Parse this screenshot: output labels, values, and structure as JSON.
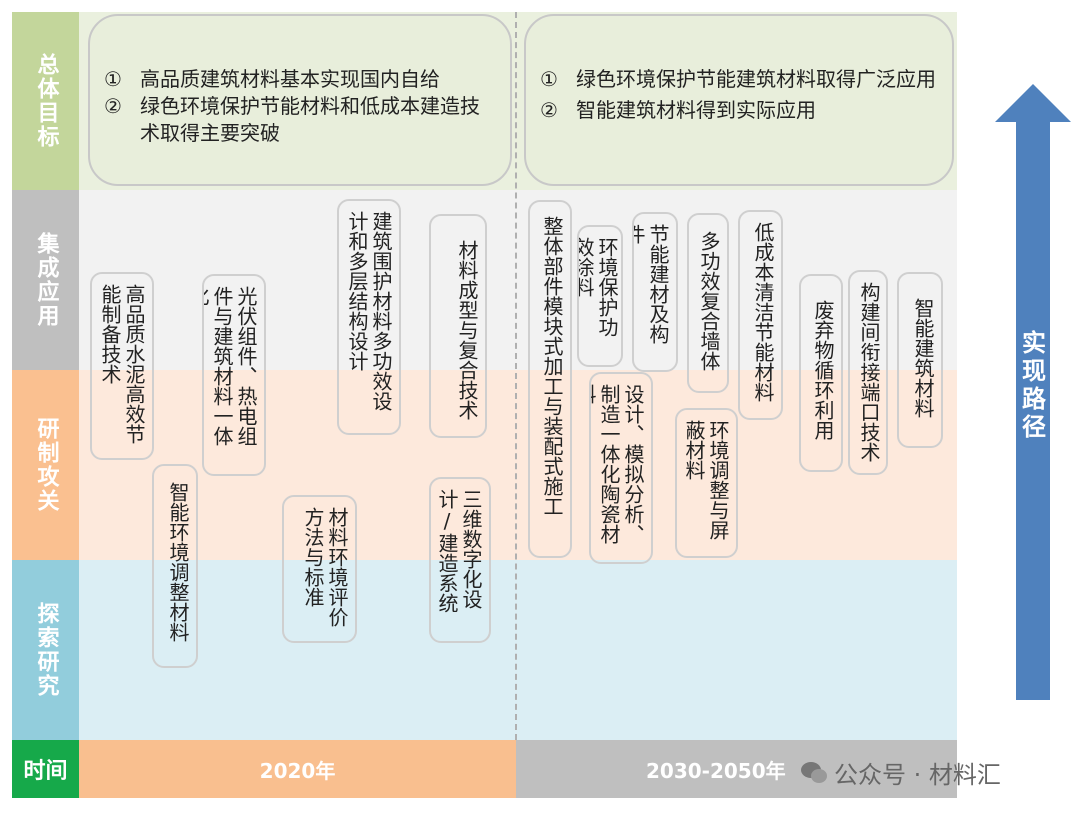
{
  "rows": [
    {
      "label": "总体目标",
      "label_color": "#c3d69b",
      "bg_color": "#eaf0de"
    },
    {
      "label": "集成应用",
      "label_color": "#bfbfbf",
      "bg_color": "#f2f2f2"
    },
    {
      "label": "研制攻关",
      "label_color": "#fac090",
      "bg_color": "#fde9dc"
    },
    {
      "label": "探索研究",
      "label_color": "#92cddc",
      "bg_color": "#dbeef4"
    },
    {
      "label": "时间",
      "label_color": "#16a94a"
    }
  ],
  "goals": {
    "left": [
      {
        "num": "①",
        "text": "高品质建筑材料基本实现国内自给"
      },
      {
        "num": "②",
        "text": "绿色环境保护节能材料和低成本建造技术取得主要突破"
      }
    ],
    "right": [
      {
        "num": "①",
        "text": "绿色环境保护节能建筑材料取得广泛应用"
      },
      {
        "num": "②",
        "text": "智能建筑材料得到实际应用"
      }
    ]
  },
  "tasks": [
    "高品质水泥高效节能制备技术",
    "光伏组件、热电组件与建筑材料一体化",
    "建筑围护材料多功效设计和多层结构设计",
    "材料成型与复合技术",
    "智能环境调整材料",
    "材料环境评价方法与标准",
    "三维数字化设计/建造系统",
    "整体部件模块式加工与装配式施工",
    "环境保护功效涂料",
    "节能建材及构件",
    "多功效复合墙体",
    "低成本清洁节能材料",
    "设计、模拟分析、制造一体化陶瓷材料",
    "环境调整与屏蔽材料",
    "废弃物循环利用",
    "构建间衔接端口技术",
    "智能建筑材料"
  ],
  "timeline": {
    "period1": "2020年",
    "period1_color": "#f9bf8f",
    "period2": "2030-2050年",
    "period2_color": "#bfbfbf"
  },
  "arrow": {
    "label": "实现路径",
    "color": "#4f81bd"
  },
  "watermark": "公众号 · 材料汇"
}
